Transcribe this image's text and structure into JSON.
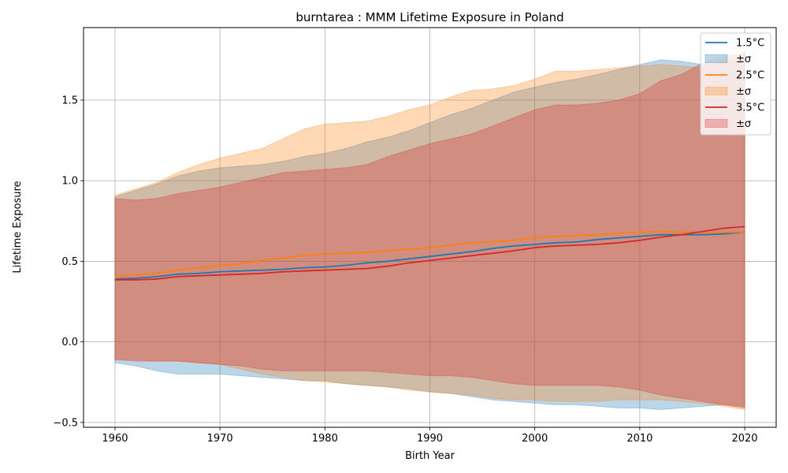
{
  "chart_data": {
    "type": "area",
    "title": "burntarea : MMM Lifetime Exposure in Poland",
    "xlabel": "Birth Year",
    "ylabel": "Lifetime Exposure",
    "xlim": [
      1957,
      2023
    ],
    "ylim": [
      -0.53,
      1.95
    ],
    "x_ticks": [
      1960,
      1970,
      1980,
      1990,
      2000,
      2010,
      2020
    ],
    "y_ticks": [
      -0.5,
      0.0,
      0.5,
      1.0,
      1.5
    ],
    "x_tick_labels": [
      "1960",
      "1970",
      "1980",
      "1990",
      "2000",
      "2010",
      "2020"
    ],
    "y_tick_labels": [
      "−0.5",
      "0.0",
      "0.5",
      "1.0",
      "1.5"
    ],
    "grid": true,
    "legend_position": "top-right",
    "series": [
      {
        "name": "1.5°C",
        "band_name": "±σ",
        "color": "#1f77b4",
        "x": [
          1960,
          1962,
          1964,
          1966,
          1968,
          1970,
          1972,
          1974,
          1976,
          1978,
          1980,
          1982,
          1984,
          1986,
          1988,
          1990,
          1992,
          1994,
          1996,
          1998,
          2000,
          2002,
          2004,
          2006,
          2008,
          2010,
          2012,
          2014,
          2016,
          2018,
          2020
        ],
        "mean": [
          0.39,
          0.395,
          0.405,
          0.42,
          0.425,
          0.435,
          0.44,
          0.445,
          0.45,
          0.46,
          0.465,
          0.475,
          0.49,
          0.5,
          0.515,
          0.53,
          0.545,
          0.56,
          0.58,
          0.595,
          0.605,
          0.615,
          0.62,
          0.635,
          0.645,
          0.655,
          0.665,
          0.665,
          0.665,
          0.67,
          0.68
        ],
        "upper": [
          0.9,
          0.94,
          0.98,
          1.03,
          1.06,
          1.08,
          1.09,
          1.1,
          1.12,
          1.15,
          1.17,
          1.2,
          1.24,
          1.27,
          1.31,
          1.36,
          1.41,
          1.45,
          1.5,
          1.55,
          1.58,
          1.61,
          1.63,
          1.66,
          1.69,
          1.72,
          1.75,
          1.74,
          1.72,
          1.73,
          1.75
        ],
        "lower": [
          -0.13,
          -0.15,
          -0.18,
          -0.2,
          -0.2,
          -0.2,
          -0.21,
          -0.22,
          -0.23,
          -0.24,
          -0.24,
          -0.26,
          -0.27,
          -0.28,
          -0.29,
          -0.31,
          -0.32,
          -0.34,
          -0.36,
          -0.37,
          -0.38,
          -0.39,
          -0.39,
          -0.4,
          -0.41,
          -0.41,
          -0.42,
          -0.41,
          -0.4,
          -0.39,
          -0.4
        ]
      },
      {
        "name": "2.5°C",
        "band_name": "±σ",
        "color": "#ff7f0e",
        "x": [
          1960,
          1962,
          1964,
          1966,
          1968,
          1970,
          1972,
          1974,
          1976,
          1978,
          1980,
          1982,
          1984,
          1986,
          1988,
          1990,
          1992,
          1994,
          1996,
          1998,
          2000,
          2002,
          2004,
          2006,
          2008,
          2010,
          2012,
          2014,
          2016,
          2018,
          2020
        ],
        "mean": [
          0.405,
          0.415,
          0.425,
          0.445,
          0.46,
          0.475,
          0.485,
          0.505,
          0.52,
          0.535,
          0.545,
          0.55,
          0.555,
          0.565,
          0.575,
          0.585,
          0.6,
          0.615,
          0.62,
          0.63,
          0.645,
          0.655,
          0.66,
          0.665,
          0.675,
          0.68,
          0.685,
          0.68,
          0.68,
          0.68,
          0.68
        ],
        "upper": [
          0.91,
          0.95,
          0.99,
          1.05,
          1.1,
          1.14,
          1.17,
          1.2,
          1.26,
          1.32,
          1.35,
          1.36,
          1.37,
          1.4,
          1.44,
          1.47,
          1.52,
          1.56,
          1.57,
          1.59,
          1.63,
          1.68,
          1.68,
          1.69,
          1.7,
          1.71,
          1.72,
          1.71,
          1.7,
          1.75,
          1.8
        ],
        "lower": [
          -0.11,
          -0.11,
          -0.12,
          -0.12,
          -0.13,
          -0.14,
          -0.17,
          -0.2,
          -0.22,
          -0.24,
          -0.25,
          -0.26,
          -0.27,
          -0.28,
          -0.3,
          -0.31,
          -0.32,
          -0.33,
          -0.35,
          -0.36,
          -0.36,
          -0.37,
          -0.37,
          -0.37,
          -0.36,
          -0.36,
          -0.36,
          -0.37,
          -0.38,
          -0.4,
          -0.42
        ]
      },
      {
        "name": "3.5°C",
        "band_name": "±σ",
        "color": "#d62728",
        "x": [
          1960,
          1962,
          1964,
          1966,
          1968,
          1970,
          1972,
          1974,
          1976,
          1978,
          1980,
          1982,
          1984,
          1986,
          1988,
          1990,
          1992,
          1994,
          1996,
          1998,
          2000,
          2002,
          2004,
          2006,
          2008,
          2010,
          2012,
          2014,
          2016,
          2018,
          2020
        ],
        "mean": [
          0.385,
          0.385,
          0.39,
          0.405,
          0.41,
          0.415,
          0.42,
          0.425,
          0.435,
          0.44,
          0.445,
          0.45,
          0.455,
          0.47,
          0.49,
          0.505,
          0.52,
          0.535,
          0.55,
          0.565,
          0.585,
          0.595,
          0.6,
          0.605,
          0.615,
          0.63,
          0.65,
          0.665,
          0.685,
          0.705,
          0.715
        ],
        "upper": [
          0.89,
          0.88,
          0.89,
          0.92,
          0.94,
          0.96,
          0.99,
          1.02,
          1.05,
          1.06,
          1.07,
          1.08,
          1.1,
          1.15,
          1.19,
          1.23,
          1.26,
          1.29,
          1.34,
          1.39,
          1.44,
          1.47,
          1.47,
          1.48,
          1.5,
          1.54,
          1.62,
          1.66,
          1.73,
          1.77,
          1.79
        ],
        "lower": [
          -0.11,
          -0.12,
          -0.12,
          -0.12,
          -0.13,
          -0.14,
          -0.15,
          -0.17,
          -0.18,
          -0.18,
          -0.18,
          -0.18,
          -0.18,
          -0.19,
          -0.2,
          -0.21,
          -0.21,
          -0.22,
          -0.24,
          -0.26,
          -0.27,
          -0.27,
          -0.27,
          -0.27,
          -0.28,
          -0.3,
          -0.33,
          -0.35,
          -0.37,
          -0.39,
          -0.41
        ]
      }
    ]
  }
}
